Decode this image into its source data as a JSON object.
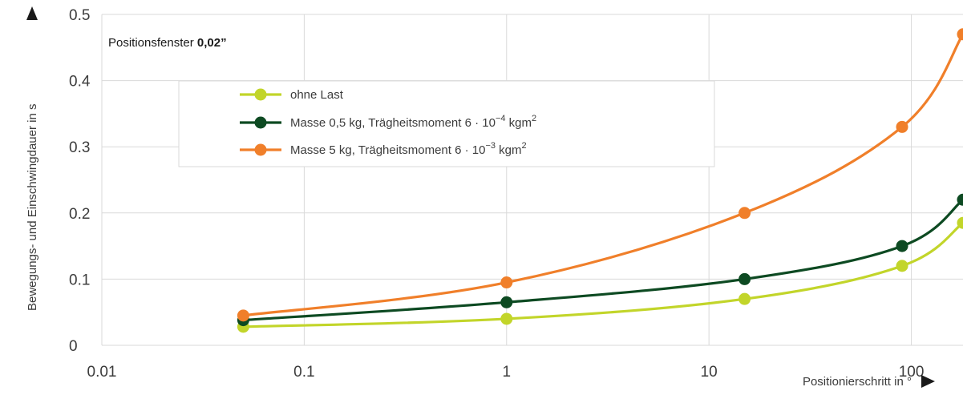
{
  "chart_data": {
    "type": "line",
    "xscale": "log",
    "xlim": [
      0.01,
      180
    ],
    "ylim": [
      0,
      0.5
    ],
    "grid": true,
    "x_tick_labels": [
      "0.01",
      "0.1",
      "1",
      "10",
      "100"
    ],
    "y_tick_labels": [
      "0",
      "0.1",
      "0.2",
      "0.3",
      "0.4",
      "0.5"
    ],
    "x_ticks": [
      0.01,
      0.1,
      1,
      10,
      100
    ],
    "y_ticks": [
      0,
      0.1,
      0.2,
      0.3,
      0.4,
      0.5
    ],
    "xlabel": "Positionierschritt in °",
    "ylabel": "Bewegungs- und Einschwingdauer in s",
    "annotation": {
      "label": "Positionsfenster ",
      "value": "0,02”"
    },
    "legend_position": "top-center",
    "series": [
      {
        "name": "ohne Last",
        "name_sup": "",
        "name_tail": "",
        "name_sup2": "",
        "color": "#c2d52a",
        "x": [
          0.05,
          1,
          15,
          90,
          180
        ],
        "values": [
          0.028,
          0.04,
          0.07,
          0.12,
          0.185
        ]
      },
      {
        "name": "Masse 0,5 kg, Trägheitsmoment 6 · 10",
        "name_sup": "−4",
        "name_tail": " kgm",
        "name_sup2": "2",
        "color": "#0d4a22",
        "x": [
          0.05,
          1,
          15,
          90,
          180
        ],
        "values": [
          0.038,
          0.065,
          0.1,
          0.15,
          0.22
        ]
      },
      {
        "name": "Masse 5 kg, Trägheitsmoment 6 · 10",
        "name_sup": "−3",
        "name_tail": " kgm",
        "name_sup2": "2",
        "color": "#f07f2a",
        "x": [
          0.05,
          1,
          15,
          90,
          180
        ],
        "values": [
          0.045,
          0.095,
          0.2,
          0.33,
          0.47
        ]
      }
    ]
  }
}
